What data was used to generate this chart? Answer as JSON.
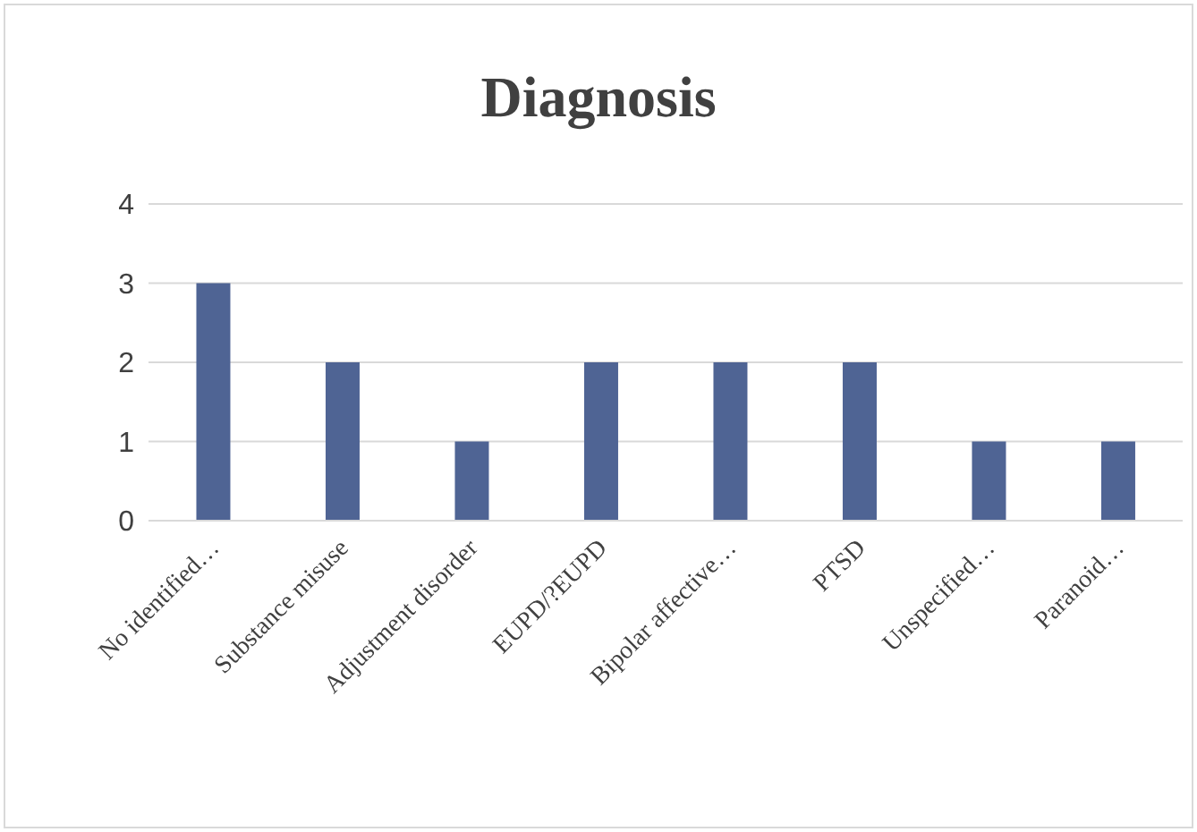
{
  "chart_data": {
    "type": "bar",
    "title": "Diagnosis",
    "categories": [
      "No identified…",
      "Substance misuse",
      "Adjustment disorder",
      "EUPD/?EUPD",
      "Bipolar affective…",
      "PTSD",
      "Unspecified…",
      "Paranoid…"
    ],
    "values": [
      3,
      2,
      1,
      2,
      2,
      2,
      1,
      1
    ],
    "color": "#4f6494",
    "ylim": [
      0,
      4
    ],
    "yticks": [
      0,
      1,
      2,
      3,
      4
    ],
    "grid": "y"
  }
}
